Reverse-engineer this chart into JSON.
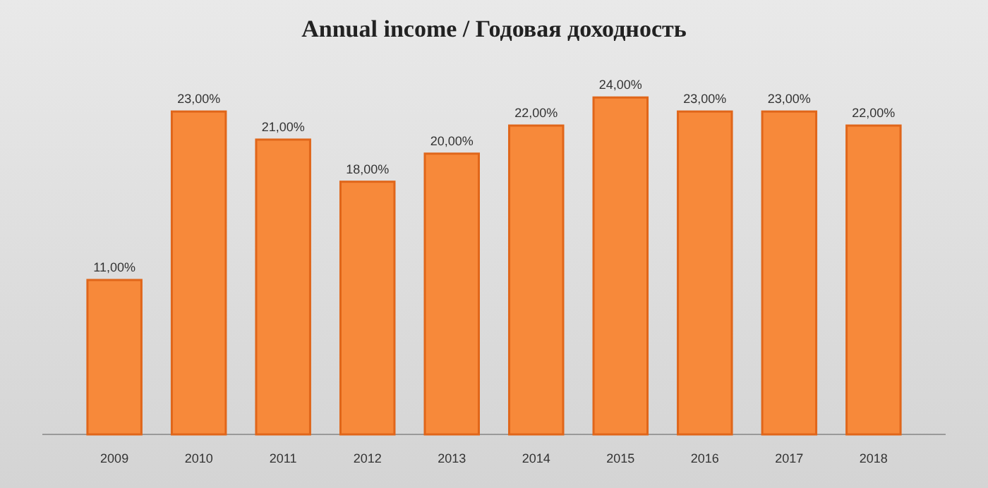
{
  "chart_data": {
    "type": "bar",
    "title": "Annual income / Годовая доходность",
    "categories": [
      "2009",
      "2010",
      "2011",
      "2012",
      "2013",
      "2014",
      "2015",
      "2016",
      "2017",
      "2018"
    ],
    "values": [
      11,
      23,
      21,
      18,
      20,
      22,
      24,
      23,
      23,
      22
    ],
    "value_labels": [
      "11,00%",
      "23,00%",
      "21,00%",
      "18,00%",
      "20,00%",
      "22,00%",
      "24,00%",
      "23,00%",
      "23,00%",
      "22,00%"
    ],
    "color": "#f7893a",
    "grid": false
  }
}
